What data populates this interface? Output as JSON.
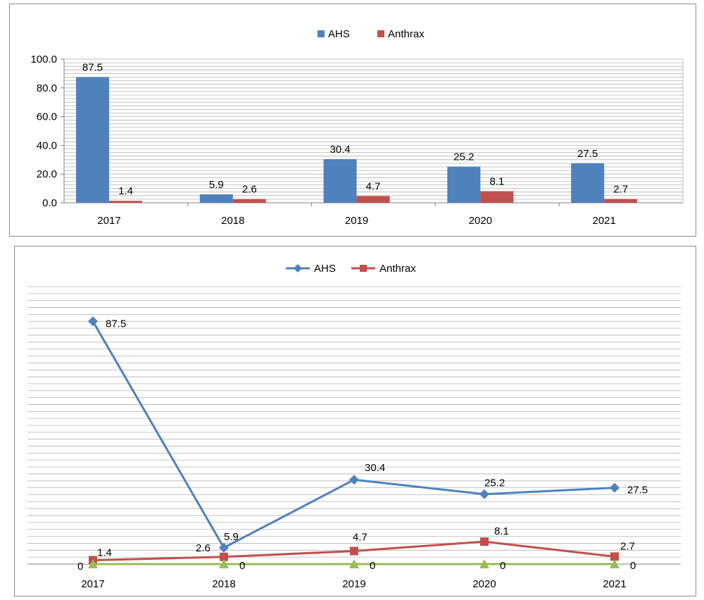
{
  "chart_data": [
    {
      "type": "bar",
      "categories": [
        "2017",
        "2018",
        "2019",
        "2020",
        "2021"
      ],
      "series": [
        {
          "name": "AHS",
          "values": [
            87.5,
            5.9,
            30.4,
            25.2,
            27.5
          ],
          "labels": [
            "87.5",
            "5.9",
            "30.4",
            "25.2",
            "27.5"
          ],
          "color": "#4f81bd"
        },
        {
          "name": "Anthrax",
          "values": [
            1.4,
            2.6,
            4.7,
            8.1,
            2.7
          ],
          "labels": [
            "1.4",
            "2.6",
            "4.7",
            "8.1",
            "2.7"
          ],
          "color": "#c0504d"
        }
      ],
      "ylim": [
        0,
        100
      ],
      "yticks": [
        "0.0",
        "20.0",
        "40.0",
        "60.0",
        "80.0",
        "100.0"
      ],
      "ytick_values": [
        0,
        20,
        40,
        60,
        80,
        100
      ],
      "grid": true,
      "legend": "top-center"
    },
    {
      "type": "line",
      "categories": [
        "2017",
        "2018",
        "2019",
        "2020",
        "2021"
      ],
      "series": [
        {
          "name": "AHS",
          "values": [
            87.5,
            5.9,
            30.4,
            25.2,
            27.5
          ],
          "labels": [
            "87.5",
            "5.9",
            "30.4",
            "25.2",
            "27.5"
          ],
          "color": "#4f81bd",
          "marker": "diamond"
        },
        {
          "name": "Anthrax",
          "values": [
            1.4,
            2.6,
            4.7,
            8.1,
            2.7
          ],
          "labels": [
            "1.4",
            "2.6",
            "4.7",
            "8.1",
            "2.7"
          ],
          "color": "#c0504d",
          "marker": "square"
        },
        {
          "name": "",
          "values": [
            0,
            0,
            0,
            0,
            0
          ],
          "labels": [
            "0",
            "0",
            "0",
            "0",
            "0"
          ],
          "color": "#9bbb59",
          "marker": "triangle"
        }
      ],
      "ylim": [
        0,
        100
      ],
      "grid": true,
      "legend": "top-center"
    }
  ]
}
